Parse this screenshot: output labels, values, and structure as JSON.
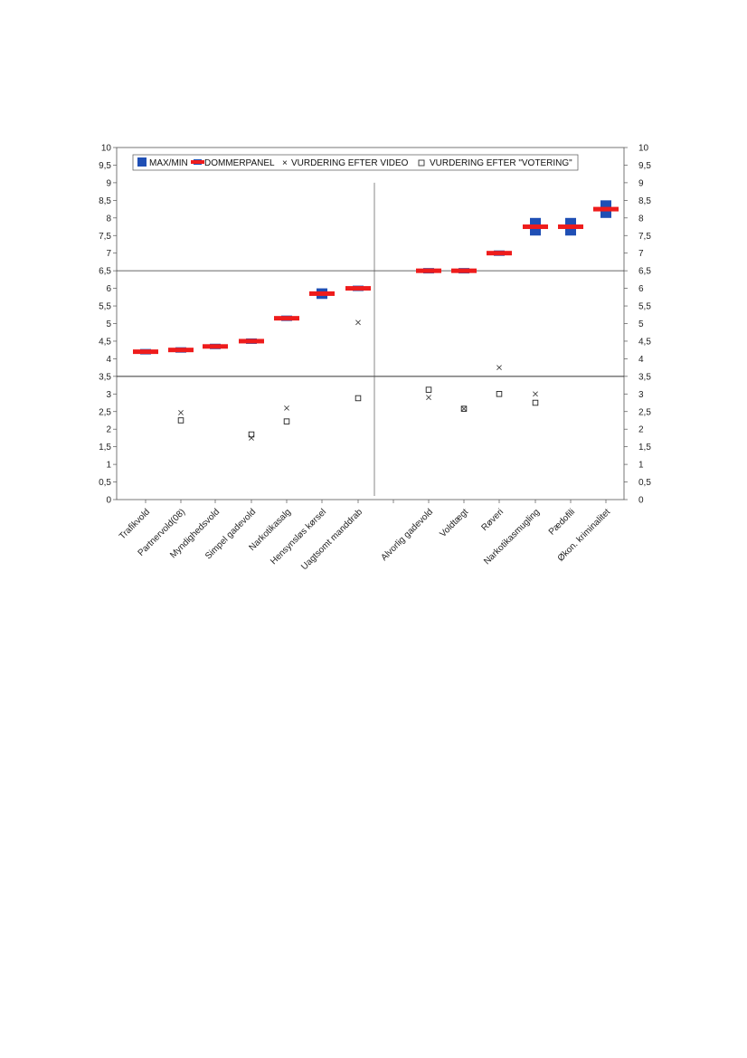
{
  "chart_data": {
    "type": "scatter",
    "title": "",
    "xlabel": "",
    "ylabel": "",
    "ylim": [
      0,
      10
    ],
    "yticks": [
      "0",
      "0,5",
      "1",
      "1,5",
      "2",
      "2,5",
      "3",
      "3,5",
      "4",
      "4,5",
      "5",
      "5,5",
      "6",
      "6,5",
      "7",
      "7,5",
      "8",
      "8,5",
      "9",
      "9,5",
      "10"
    ],
    "grid": false,
    "legend_position": "top-left",
    "reference_lines": [
      3.5,
      6.5
    ],
    "categories": [
      "Trafikvold",
      "Partnervold(08)",
      "Myndighedsvold",
      "Simpel gadevold",
      "Narkotikasalg",
      "Hensynsløs kørsel",
      "Uagtsomt manddrab",
      "Alvorlig gadevold",
      "Voldtægt",
      "Røveri",
      "Narkotikasmugling",
      "Pædofili",
      "Økon. kriminalitet"
    ],
    "series": [
      {
        "name": "MAX/MIN",
        "color": "#1f4fb5",
        "values": [
          [
            4.2,
            4.2
          ],
          [
            4.2,
            4.3
          ],
          [
            4.35,
            4.35
          ],
          [
            4.5,
            4.5
          ],
          [
            5.15,
            5.15
          ],
          [
            5.7,
            6.0
          ],
          [
            6.0,
            6.0
          ],
          [
            6.5,
            6.5
          ],
          [
            6.5,
            6.5
          ],
          [
            7.0,
            7.0
          ],
          [
            7.5,
            8.0
          ],
          [
            7.5,
            8.0
          ],
          [
            8.0,
            8.5
          ]
        ]
      },
      {
        "name": "DOMMERPANEL",
        "color": "#ee1c1c",
        "values": [
          4.2,
          4.25,
          4.35,
          4.5,
          5.15,
          5.85,
          6.0,
          6.5,
          6.5,
          7.0,
          7.75,
          7.75,
          8.25
        ]
      },
      {
        "name": "VURDERING EFTER VIDEO",
        "marker": "x",
        "values": [
          null,
          2.47,
          null,
          1.75,
          2.6,
          null,
          5.03,
          2.9,
          2.58,
          3.75,
          3.0,
          null,
          null
        ]
      },
      {
        "name": "VURDERING EFTER \"VOTERING\"",
        "marker": "square",
        "values": [
          null,
          2.25,
          null,
          1.85,
          2.22,
          null,
          2.88,
          3.12,
          2.58,
          3.0,
          2.75,
          null,
          null
        ]
      }
    ]
  },
  "colors": {
    "maxmin": "#1f4fb5",
    "panel": "#ee1c1c",
    "axis": "#333333",
    "marker": "#333333"
  }
}
